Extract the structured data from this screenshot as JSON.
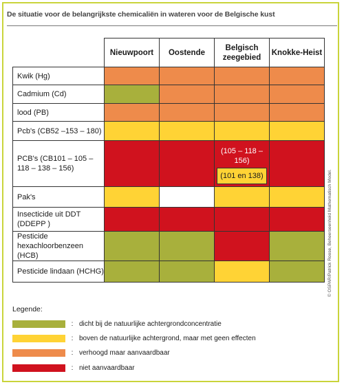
{
  "title": "De situatie voor de belangrijkste chemicaliën in wateren voor de Belgische kust",
  "colors": {
    "green": "#a8b03c",
    "yellow": "#ffd335",
    "orange": "#ee8b4b",
    "red": "#d0121e",
    "white": "#ffffff",
    "border_accent": "#c9d43a"
  },
  "columns": [
    "Nieuwpoort",
    "Oostende",
    "Belgisch zeegebied",
    "Knokke-Heist"
  ],
  "rows": [
    {
      "label": "Kwik (Hg)",
      "cells": [
        "orange",
        "orange",
        "orange",
        "orange"
      ]
    },
    {
      "label": "Cadmium (Cd)",
      "cells": [
        "green",
        "orange",
        "orange",
        "orange"
      ]
    },
    {
      "label": "lood (PB)",
      "cells": [
        "orange",
        "orange",
        "orange",
        "orange"
      ]
    },
    {
      "label": "Pcb's (CB52 –153 – 180)",
      "cells": [
        "yellow",
        "yellow",
        "yellow",
        "yellow"
      ]
    },
    {
      "label": "PCB's (CB101 – 105 – 118 – 138 – 156)",
      "cells": [
        "red",
        "red",
        "split",
        "red"
      ],
      "split": {
        "top_text": "(105 – 118 – 156)",
        "top_color": "red",
        "bottom_text": "(101 en 138)",
        "bottom_color": "yellow"
      }
    },
    {
      "label": "Pak's",
      "cells": [
        "yellow",
        "white",
        "yellow",
        "yellow"
      ]
    },
    {
      "label": "Insecticide uit DDT (DDEPP )",
      "cells": [
        "red",
        "red",
        "red",
        "red"
      ]
    },
    {
      "label": "Pesticide hexachloorbenzeen (HCB)",
      "cells": [
        "green",
        "green",
        "red",
        "green"
      ]
    },
    {
      "label": "Pesticide lindaan (HCHG)",
      "cells": [
        "green",
        "green",
        "yellow",
        "green"
      ]
    }
  ],
  "credit": "© OSPAR/Patrick Roose, Beheerseenheid Mathematisch Model.",
  "legend": {
    "title": "Legende:",
    "items": [
      {
        "color": "green",
        "text": "dicht bij de natuurlijke achtergrondconcentratie"
      },
      {
        "color": "yellow",
        "text": "boven de natuurlijke achtergrond, maar met geen effecten"
      },
      {
        "color": "orange",
        "text": "verhoogd maar aanvaardbaar"
      },
      {
        "color": "red",
        "text": "niet aanvaardbaar"
      }
    ]
  }
}
